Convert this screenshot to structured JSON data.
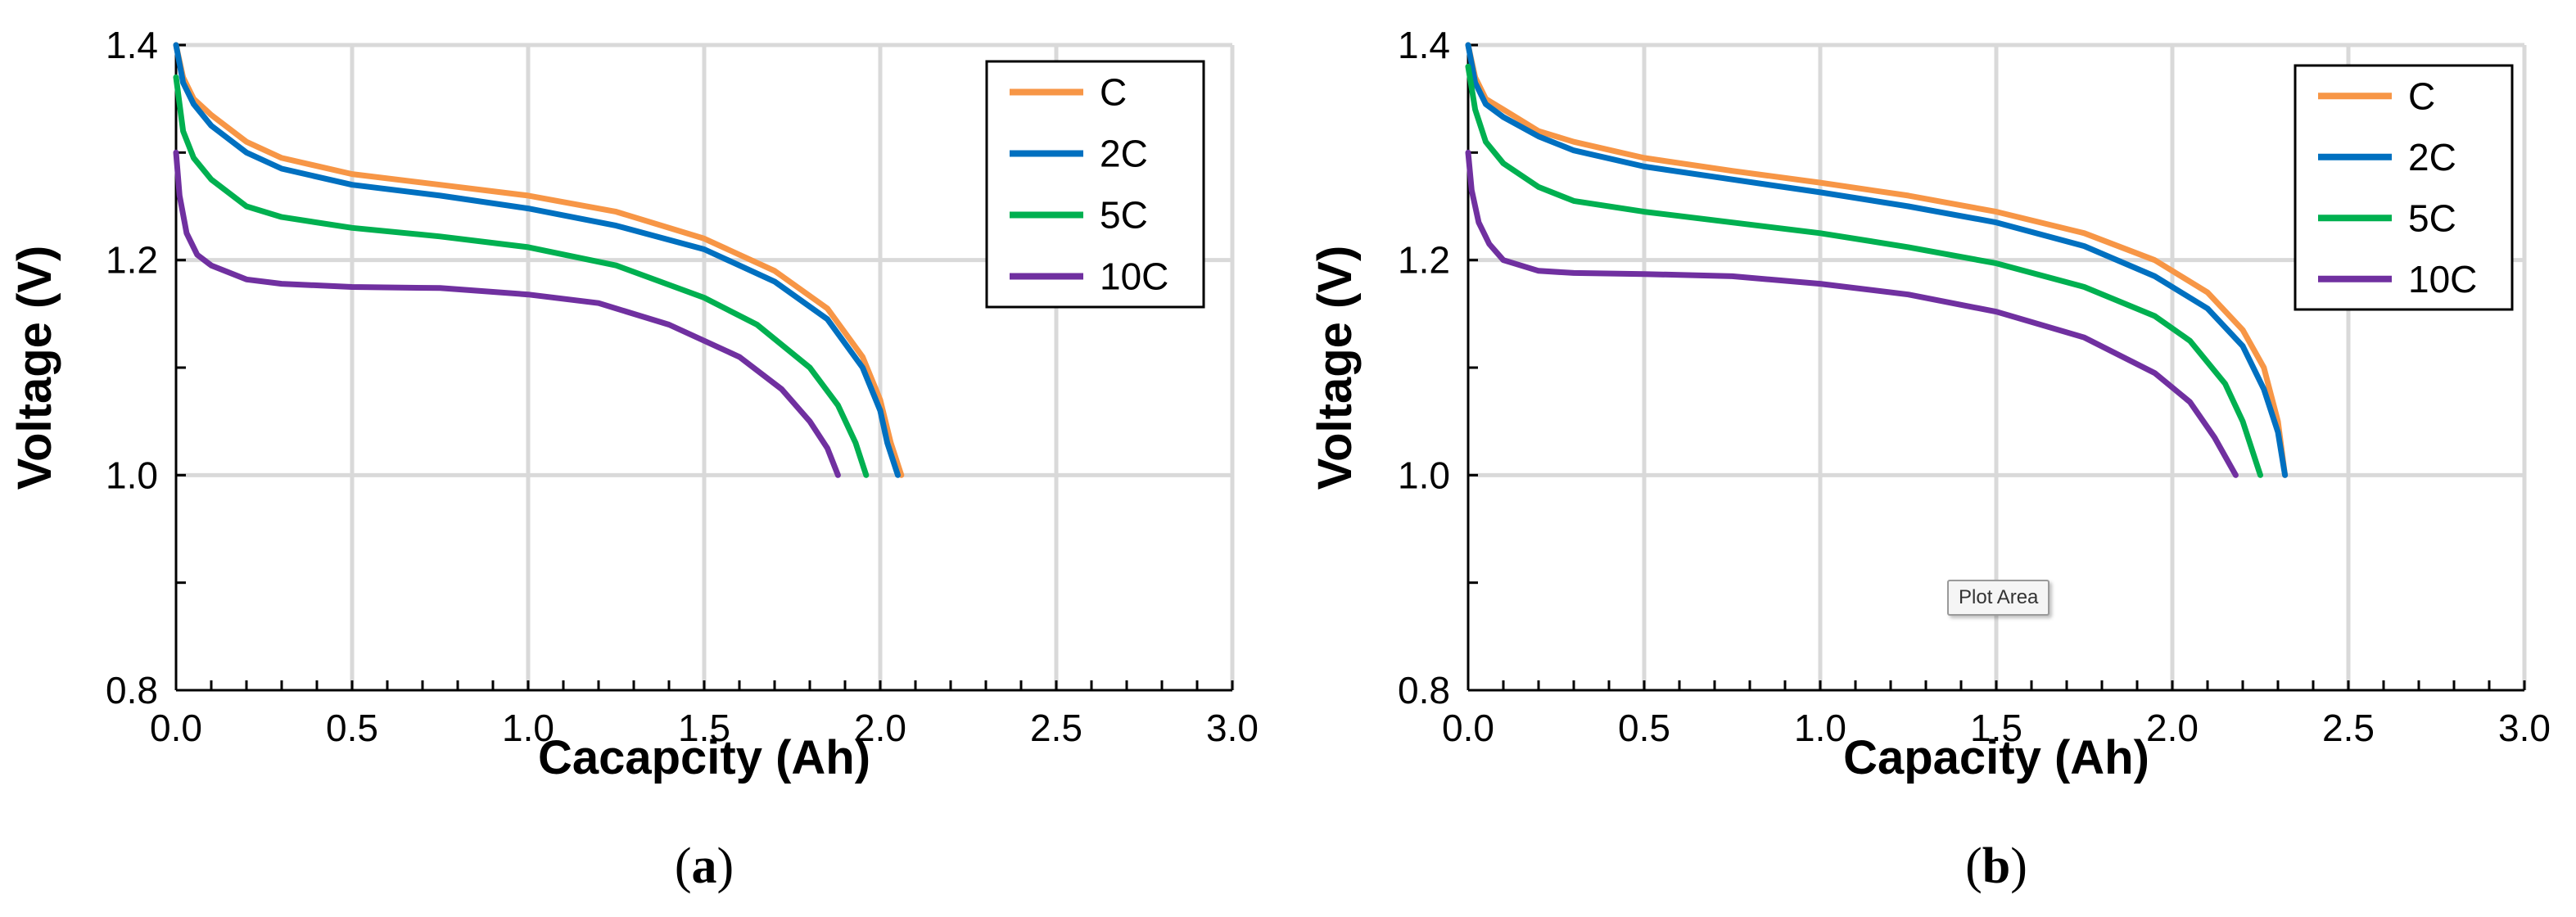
{
  "colors": {
    "C": "#f79646",
    "2C": "#0070c0",
    "5C": "#00b050",
    "10C": "#7030a0",
    "grid": "#d9d9d9",
    "axis": "#000000"
  },
  "tooltip": {
    "text": "Plot Area"
  },
  "chart_data": [
    {
      "type": "line",
      "panel_label_parts": [
        "(",
        "a",
        ")"
      ],
      "xlabel": "Cacapcity (Ah)",
      "ylabel": "Voltage (V)",
      "xlim": [
        0.0,
        3.0
      ],
      "ylim": [
        0.8,
        1.4
      ],
      "xticks": [
        "0.0",
        "0.5",
        "1.0",
        "1.5",
        "2.0",
        "2.5",
        "3.0"
      ],
      "yticks": [
        "0.8",
        "1.0",
        "1.2",
        "1.4"
      ],
      "legend_position": "top-right",
      "grid": true,
      "series": [
        {
          "name": "C",
          "x": [
            0.0,
            0.02,
            0.05,
            0.1,
            0.2,
            0.3,
            0.5,
            0.75,
            1.0,
            1.25,
            1.5,
            1.7,
            1.85,
            1.95,
            2.0,
            2.03,
            2.06
          ],
          "y": [
            1.4,
            1.37,
            1.35,
            1.335,
            1.31,
            1.295,
            1.28,
            1.27,
            1.26,
            1.245,
            1.22,
            1.19,
            1.155,
            1.11,
            1.07,
            1.03,
            1.0
          ]
        },
        {
          "name": "2C",
          "x": [
            0.0,
            0.02,
            0.05,
            0.1,
            0.2,
            0.3,
            0.5,
            0.75,
            1.0,
            1.25,
            1.5,
            1.7,
            1.85,
            1.95,
            2.0,
            2.02,
            2.05
          ],
          "y": [
            1.4,
            1.365,
            1.345,
            1.325,
            1.3,
            1.285,
            1.27,
            1.26,
            1.248,
            1.232,
            1.21,
            1.18,
            1.145,
            1.1,
            1.06,
            1.03,
            1.0
          ]
        },
        {
          "name": "5C",
          "x": [
            0.0,
            0.02,
            0.05,
            0.1,
            0.2,
            0.3,
            0.5,
            0.75,
            1.0,
            1.25,
            1.5,
            1.65,
            1.8,
            1.88,
            1.93,
            1.96
          ],
          "y": [
            1.37,
            1.32,
            1.295,
            1.275,
            1.25,
            1.24,
            1.23,
            1.222,
            1.212,
            1.195,
            1.165,
            1.14,
            1.1,
            1.065,
            1.03,
            1.0
          ]
        },
        {
          "name": "10C",
          "x": [
            0.0,
            0.01,
            0.03,
            0.06,
            0.1,
            0.2,
            0.3,
            0.5,
            0.75,
            1.0,
            1.2,
            1.4,
            1.6,
            1.72,
            1.8,
            1.85,
            1.88
          ],
          "y": [
            1.3,
            1.26,
            1.225,
            1.205,
            1.195,
            1.182,
            1.178,
            1.175,
            1.174,
            1.168,
            1.16,
            1.14,
            1.11,
            1.08,
            1.05,
            1.025,
            1.0
          ]
        }
      ]
    },
    {
      "type": "line",
      "panel_label_parts": [
        "(",
        "b",
        ")"
      ],
      "xlabel": "Capacity (Ah)",
      "ylabel": "Voltage (V)",
      "xlim": [
        0.0,
        3.0
      ],
      "ylim": [
        0.8,
        1.4
      ],
      "xticks": [
        "0.0",
        "0.5",
        "1.0",
        "1.5",
        "2.0",
        "2.5",
        "3.0"
      ],
      "yticks": [
        "0.8",
        "1.0",
        "1.2",
        "1.4"
      ],
      "legend_position": "top-right",
      "grid": true,
      "series": [
        {
          "name": "C",
          "x": [
            0.0,
            0.02,
            0.05,
            0.1,
            0.2,
            0.3,
            0.5,
            0.75,
            1.0,
            1.25,
            1.5,
            1.75,
            1.95,
            2.1,
            2.2,
            2.26,
            2.3,
            2.32
          ],
          "y": [
            1.4,
            1.37,
            1.35,
            1.34,
            1.32,
            1.31,
            1.295,
            1.283,
            1.272,
            1.26,
            1.245,
            1.225,
            1.2,
            1.17,
            1.135,
            1.1,
            1.05,
            1.0
          ]
        },
        {
          "name": "2C",
          "x": [
            0.0,
            0.02,
            0.05,
            0.1,
            0.2,
            0.3,
            0.5,
            0.75,
            1.0,
            1.25,
            1.5,
            1.75,
            1.95,
            2.1,
            2.2,
            2.26,
            2.3,
            2.32
          ],
          "y": [
            1.4,
            1.365,
            1.345,
            1.333,
            1.315,
            1.302,
            1.287,
            1.275,
            1.263,
            1.25,
            1.235,
            1.213,
            1.185,
            1.155,
            1.12,
            1.08,
            1.04,
            1.0
          ]
        },
        {
          "name": "5C",
          "x": [
            0.0,
            0.02,
            0.05,
            0.1,
            0.2,
            0.3,
            0.5,
            0.75,
            1.0,
            1.25,
            1.5,
            1.75,
            1.95,
            2.05,
            2.15,
            2.2,
            2.25
          ],
          "y": [
            1.38,
            1.34,
            1.31,
            1.29,
            1.268,
            1.255,
            1.245,
            1.235,
            1.225,
            1.212,
            1.197,
            1.175,
            1.148,
            1.125,
            1.085,
            1.05,
            1.0
          ]
        },
        {
          "name": "10C",
          "x": [
            0.0,
            0.01,
            0.03,
            0.06,
            0.1,
            0.2,
            0.3,
            0.5,
            0.75,
            1.0,
            1.25,
            1.5,
            1.75,
            1.95,
            2.05,
            2.12,
            2.18
          ],
          "y": [
            1.3,
            1.265,
            1.235,
            1.215,
            1.2,
            1.19,
            1.188,
            1.187,
            1.185,
            1.178,
            1.168,
            1.152,
            1.128,
            1.095,
            1.068,
            1.035,
            1.0
          ]
        }
      ]
    }
  ]
}
